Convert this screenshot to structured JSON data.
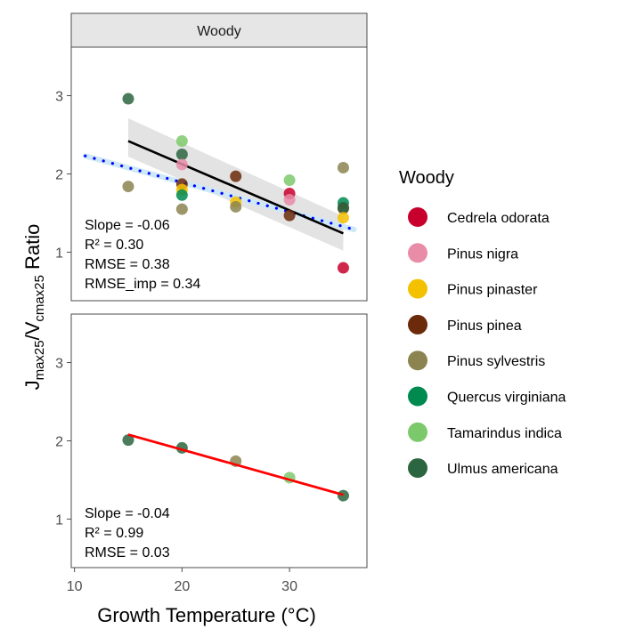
{
  "chart_data": [
    {
      "type": "scatter",
      "panel": "top",
      "facet_label": "Woody",
      "xlabel": "Growth Temperature (°C)",
      "ylabel": "Jmax25/Vcmax25 Ratio",
      "ylabel_parts": {
        "j": "J",
        "j_sub": "max25",
        "v": "V",
        "v_sub": "cmax25",
        "suffix": " Ratio"
      },
      "xlim": [
        9.7,
        37.2
      ],
      "ylim": [
        0.38,
        3.62
      ],
      "xticks": [
        10,
        20,
        30
      ],
      "yticks": [
        1,
        2,
        3
      ],
      "grid": false,
      "points": [
        {
          "species": "Ulmus americana",
          "x": 15,
          "y": 2.96
        },
        {
          "species": "Pinus sylvestris",
          "x": 15,
          "y": 1.84
        },
        {
          "species": "Tamarindus indica",
          "x": 20,
          "y": 2.42
        },
        {
          "species": "Ulmus americana",
          "x": 20,
          "y": 2.25
        },
        {
          "species": "Pinus nigra",
          "x": 20,
          "y": 2.12
        },
        {
          "species": "Pinus pinea",
          "x": 20,
          "y": 1.87
        },
        {
          "species": "Pinus pinaster",
          "x": 20,
          "y": 1.8
        },
        {
          "species": "Quercus virginiana",
          "x": 20,
          "y": 1.73
        },
        {
          "species": "Pinus sylvestris",
          "x": 20,
          "y": 1.55
        },
        {
          "species": "Pinus pinea",
          "x": 25,
          "y": 1.97
        },
        {
          "species": "Pinus pinaster",
          "x": 25,
          "y": 1.64
        },
        {
          "species": "Pinus sylvestris",
          "x": 25,
          "y": 1.58
        },
        {
          "species": "Tamarindus indica",
          "x": 30,
          "y": 1.92
        },
        {
          "species": "Cedrela odorata",
          "x": 30,
          "y": 1.75
        },
        {
          "species": "Pinus nigra",
          "x": 30,
          "y": 1.67
        },
        {
          "species": "Pinus pinea",
          "x": 30,
          "y": 1.47
        },
        {
          "species": "Pinus sylvestris",
          "x": 35,
          "y": 2.08
        },
        {
          "species": "Quercus virginiana",
          "x": 35,
          "y": 1.63
        },
        {
          "species": "Pinus pinea",
          "x": 35,
          "y": 1.56
        },
        {
          "species": "Ulmus americana",
          "x": 35,
          "y": 1.57
        },
        {
          "species": "Pinus pinaster",
          "x": 35,
          "y": 1.44
        },
        {
          "species": "Cedrela odorata",
          "x": 35,
          "y": 0.8
        }
      ],
      "fit_line": {
        "x": [
          15,
          35
        ],
        "y": [
          2.42,
          1.24
        ],
        "color": "#000000"
      },
      "fit_ribbon": {
        "x": [
          15,
          35
        ],
        "ymin": [
          2.22,
          1.02
        ],
        "ymax": [
          2.71,
          1.46
        ],
        "color": "#d9d9d9"
      },
      "dotted_line": {
        "x": [
          11,
          36
        ],
        "y": [
          2.23,
          1.29
        ],
        "color": "#0000ff"
      },
      "annotation": [
        "Slope = -0.06",
        "R² = 0.30",
        "RMSE = 0.38",
        "RMSE_imp = 0.34"
      ]
    },
    {
      "type": "scatter",
      "panel": "bottom",
      "xlim": [
        9.7,
        37.2
      ],
      "ylim": [
        0.38,
        3.62
      ],
      "xticks": [
        10,
        20,
        30
      ],
      "yticks": [
        1,
        2,
        3
      ],
      "grid": false,
      "points": [
        {
          "species": "Ulmus americana",
          "x": 15,
          "y": 2.01
        },
        {
          "species": "Ulmus americana",
          "x": 20,
          "y": 1.91
        },
        {
          "species": "Pinus sylvestris",
          "x": 25,
          "y": 1.74
        },
        {
          "species": "Tamarindus indica",
          "x": 30,
          "y": 1.53
        },
        {
          "species": "Ulmus americana",
          "x": 35,
          "y": 1.3
        }
      ],
      "fit_line": {
        "x": [
          15,
          35
        ],
        "y": [
          2.08,
          1.31
        ],
        "color": "#ff0000"
      },
      "annotation": [
        "Slope = -0.04",
        "R² = 0.99",
        "RMSE = 0.03"
      ]
    }
  ],
  "legend": {
    "title": "Woody",
    "placement": "right",
    "items": [
      {
        "label": "Cedrela odorata",
        "color": "#c8002d"
      },
      {
        "label": "Pinus nigra",
        "color": "#e88ca8"
      },
      {
        "label": "Pinus pinaster",
        "color": "#f3c100"
      },
      {
        "label": "Pinus pinea",
        "color": "#6b2a0a"
      },
      {
        "label": "Pinus sylvestris",
        "color": "#8b8450"
      },
      {
        "label": "Quercus virginiana",
        "color": "#008a50"
      },
      {
        "label": "Tamarindus indica",
        "color": "#7cc96c"
      },
      {
        "label": "Ulmus americana",
        "color": "#2c6640"
      }
    ]
  }
}
